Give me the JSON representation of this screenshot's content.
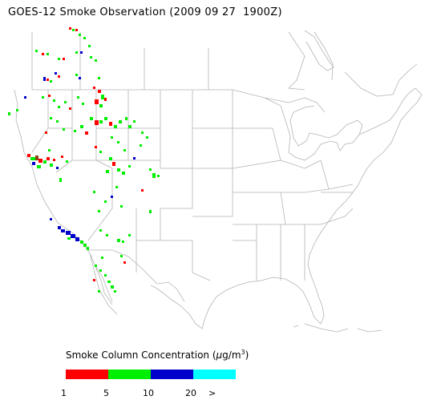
{
  "title": "GOES-12 Smoke Observation (2009 09 27  1900Z)",
  "legend": {
    "label_prefix": "Smoke Column Concentration (",
    "label_unit_mu": "μ",
    "label_unit_main": "g/m",
    "label_unit_sup": "3",
    "label_suffix": ")",
    "bins": [
      {
        "color": "#ff0000",
        "range": "1–5"
      },
      {
        "color": "#00ee00",
        "range": "5–10"
      },
      {
        "color": "#0000cc",
        "range": "10–20"
      },
      {
        "color": "#00ffff",
        "range": ">20"
      }
    ],
    "ticks": [
      "1",
      "5",
      "10",
      "20",
      ">"
    ]
  },
  "map": {
    "region": "Continental United States",
    "boundary_color": "#b4b4b4"
  }
}
